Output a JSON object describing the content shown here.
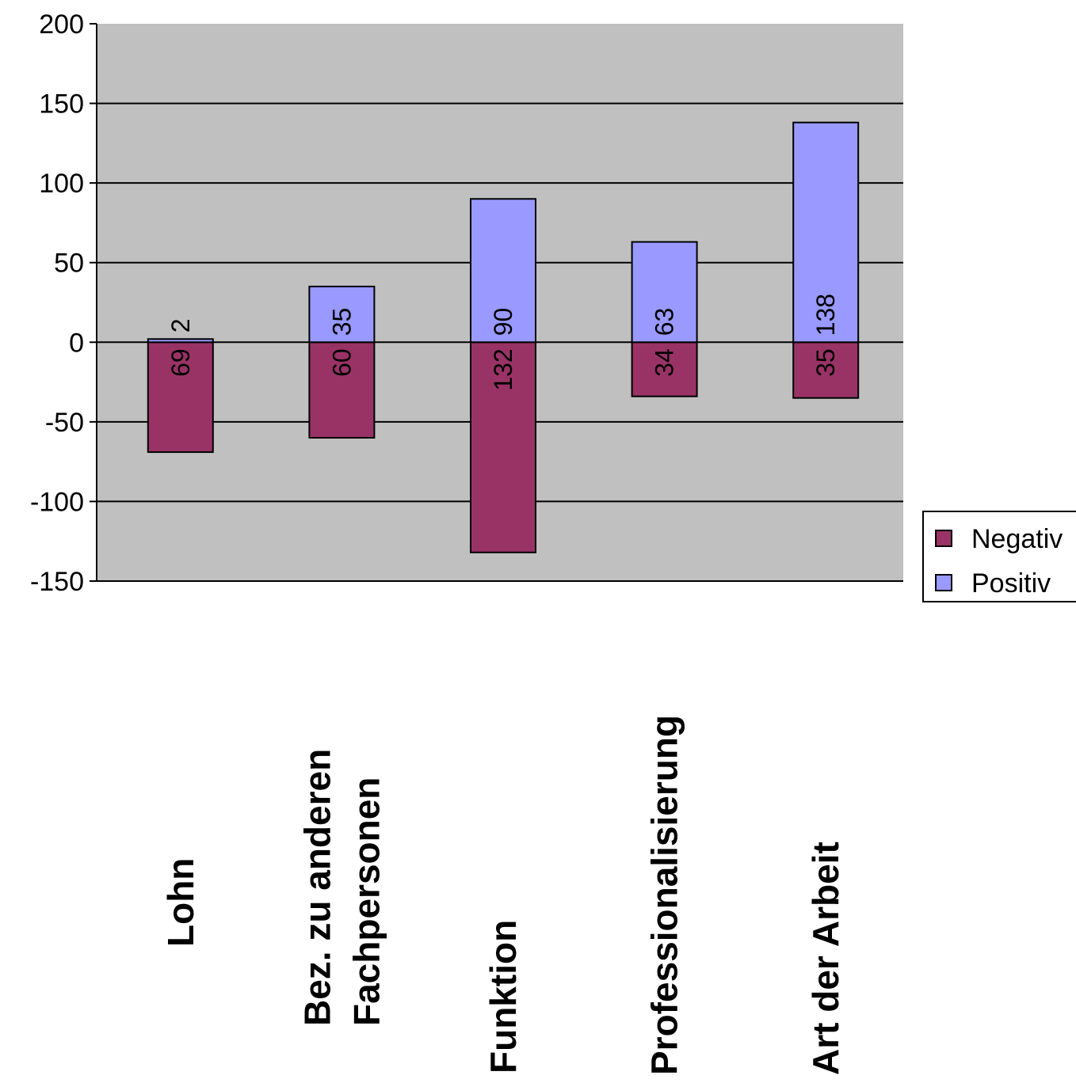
{
  "chart_data": {
    "type": "bar",
    "stacked": true,
    "categories": [
      [
        "Lohn"
      ],
      [
        "Bez. zu anderen",
        "Fachpersonen"
      ],
      [
        "Funktion"
      ],
      [
        "Professionalisierung"
      ],
      [
        "Art der Arbeit"
      ]
    ],
    "series": [
      {
        "name": "Negativ",
        "values": [
          -69,
          -60,
          -132,
          -34,
          -35
        ],
        "labels": [
          "69",
          "60",
          "132",
          "34",
          "35"
        ],
        "color": "#993366"
      },
      {
        "name": "Positiv",
        "values": [
          2,
          35,
          90,
          63,
          138
        ],
        "labels": [
          "2",
          "35",
          "90",
          "63",
          "138"
        ],
        "color": "#9999ff"
      }
    ],
    "ylim": [
      -150,
      200
    ],
    "yticks": [
      200,
      150,
      100,
      50,
      0,
      -50,
      -100,
      -150
    ],
    "grid": true,
    "plot_background": "#c0c0c0",
    "legend_position": "right"
  }
}
